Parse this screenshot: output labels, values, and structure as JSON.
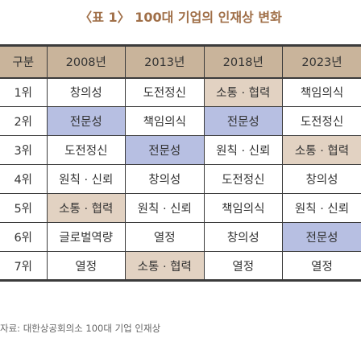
{
  "title": "〈표 1〉 100대 기업의 인재상 변화",
  "headers": [
    "구분",
    "2008년",
    "2013년",
    "2018년",
    "2023년"
  ],
  "rows": [
    {
      "rank": "1위",
      "cells": [
        "창의성",
        "도전정신",
        "소통 · 협력",
        "책임의식"
      ]
    },
    {
      "rank": "2위",
      "cells": [
        "전문성",
        "책임의식",
        "전문성",
        "도전정신"
      ]
    },
    {
      "rank": "3위",
      "cells": [
        "도전정신",
        "전문성",
        "원칙 · 신뢰",
        "소통 · 협력"
      ]
    },
    {
      "rank": "4위",
      "cells": [
        "원칙 · 신뢰",
        "창의성",
        "도전정신",
        "창의성"
      ]
    },
    {
      "rank": "5위",
      "cells": [
        "소통 · 협력",
        "원칙 · 신뢰",
        "책임의식",
        "원칙 · 신뢰"
      ]
    },
    {
      "rank": "6위",
      "cells": [
        "글로벌역량",
        "열정",
        "창의성",
        "전문성"
      ]
    },
    {
      "rank": "7위",
      "cells": [
        "열정",
        "소통 · 협력",
        "열정",
        "열정"
      ]
    }
  ],
  "highlight_colors": {
    "header": "#c9b49b",
    "tan": "#e2d2c2",
    "blue": "#b7bfe2"
  },
  "source": "자료: 대한상공회의소 100대 기업 인재상"
}
